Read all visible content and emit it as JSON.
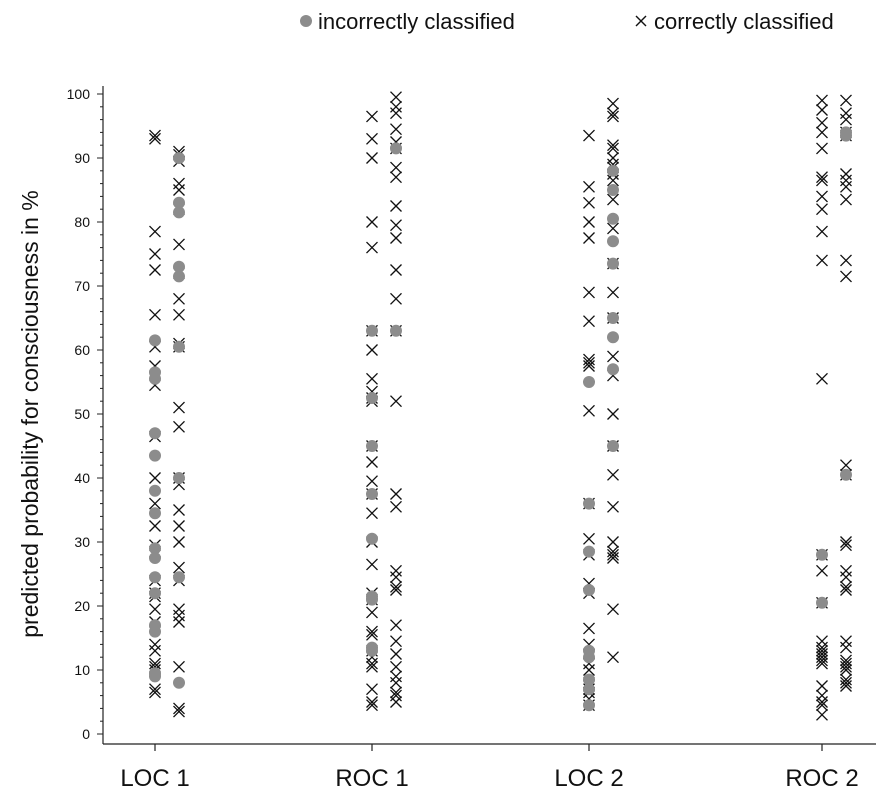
{
  "legend": {
    "incorrect_label": "incorrectly classified",
    "correct_label": "correctly classified"
  },
  "colors": {
    "incorrect": "#8c8c8c",
    "correct": "#111111",
    "axis": "#222222"
  },
  "chart_data": {
    "type": "scatter",
    "ylabel": "predicted probability for consciousness in %",
    "ylim": [
      0,
      100
    ],
    "yticks": [
      0,
      10,
      20,
      30,
      40,
      50,
      60,
      70,
      80,
      90,
      100
    ],
    "categories": [
      "LOC 1",
      "ROC 1",
      "LOC 2",
      "ROC 2"
    ],
    "legend_position": "top",
    "groups": [
      {
        "category": "LOC 1",
        "subcolumns": [
          {
            "incorrect": [
              61.5,
              56.5,
              55.5,
              47,
              43.5,
              38,
              34.5,
              29,
              27.5,
              24.5,
              22,
              17,
              16,
              9.5,
              9
            ],
            "correct": [
              93.5,
              93,
              78.5,
              75,
              72.5,
              65.5,
              60.5,
              57.5,
              54.5,
              46.5,
              40,
              36,
              32.5,
              29.5,
              28.5,
              24,
              22,
              21.5,
              19.5,
              17.5,
              14,
              13,
              11,
              10.5,
              10,
              7,
              6.5
            ]
          },
          {
            "incorrect": [
              90,
              83,
              81.5,
              73,
              71.5,
              60.5,
              40,
              24.5,
              8
            ],
            "correct": [
              91,
              90.5,
              89.5,
              86,
              85,
              82,
              76.5,
              72,
              68,
              65.5,
              61,
              60.5,
              51,
              48,
              40,
              39,
              35,
              32.5,
              30,
              26,
              24,
              19.5,
              18.5,
              17.5,
              10.5,
              4,
              3.5
            ]
          }
        ]
      },
      {
        "category": "ROC 1",
        "subcolumns": [
          {
            "incorrect": [
              63,
              52.5,
              45,
              37.5,
              30.5,
              21.5,
              21,
              13.5,
              13
            ],
            "correct": [
              96.5,
              93,
              90,
              80,
              76,
              63,
              60,
              55.5,
              53.5,
              52.5,
              52,
              45,
              42.5,
              39.5,
              37.5,
              34.5,
              30,
              26.5,
              22,
              21,
              19,
              16,
              15.5,
              13,
              12,
              11,
              10.5,
              7,
              5,
              4.5
            ]
          },
          {
            "incorrect": [
              91.5,
              63
            ],
            "correct": [
              99.5,
              98,
              97,
              94.5,
              92.5,
              91.5,
              88.5,
              87,
              82.5,
              79.5,
              77.5,
              72.5,
              68,
              63,
              52,
              37.5,
              35.5,
              25.5,
              24.5,
              23,
              22.5,
              17,
              14.5,
              12.5,
              10.5,
              9,
              8,
              6.5,
              6,
              5
            ]
          }
        ]
      },
      {
        "category": "LOC 2",
        "subcolumns": [
          {
            "incorrect": [
              55,
              36,
              28.5,
              22.5,
              13,
              12,
              8.5,
              7,
              4.5
            ],
            "correct": [
              93.5,
              85.5,
              83,
              80,
              77.5,
              69,
              64.5,
              58.5,
              58,
              57.5,
              50.5,
              36,
              30.5,
              28,
              23.5,
              22,
              16.5,
              14,
              12.5,
              11,
              10,
              8,
              7.5,
              7,
              6.5,
              5.5,
              4.5
            ]
          },
          {
            "incorrect": [
              88,
              85,
              80.5,
              77,
              73.5,
              65,
              62,
              57,
              45
            ],
            "correct": [
              98.5,
              97,
              96.5,
              92,
              91.5,
              90,
              89,
              88.5,
              87.5,
              86.5,
              83.5,
              79,
              73.5,
              69,
              65,
              59,
              56,
              50,
              45,
              40.5,
              35.5,
              30,
              28.5,
              28,
              27.5,
              19.5,
              12
            ]
          }
        ]
      },
      {
        "category": "ROC 2",
        "subcolumns": [
          {
            "incorrect": [
              28,
              20.5
            ],
            "correct": [
              99,
              97.5,
              95.5,
              94,
              91.5,
              87,
              86.5,
              84,
              82,
              78.5,
              74,
              55.5,
              28,
              25.5,
              20.5,
              14.5,
              13.5,
              13,
              12.5,
              12,
              11.5,
              11,
              7.5,
              6,
              5,
              4.5,
              3
            ]
          },
          {
            "incorrect": [
              94,
              93.5,
              40.5
            ],
            "correct": [
              99,
              97,
              96,
              94,
              93.5,
              87.5,
              86.5,
              85.5,
              83.5,
              74,
              71.5,
              42,
              40.5,
              30,
              29.5,
              25.5,
              24.5,
              23,
              22.5,
              14.5,
              13.5,
              11.5,
              11,
              10.5,
              10,
              8.5,
              8,
              7.5
            ]
          }
        ]
      }
    ]
  }
}
